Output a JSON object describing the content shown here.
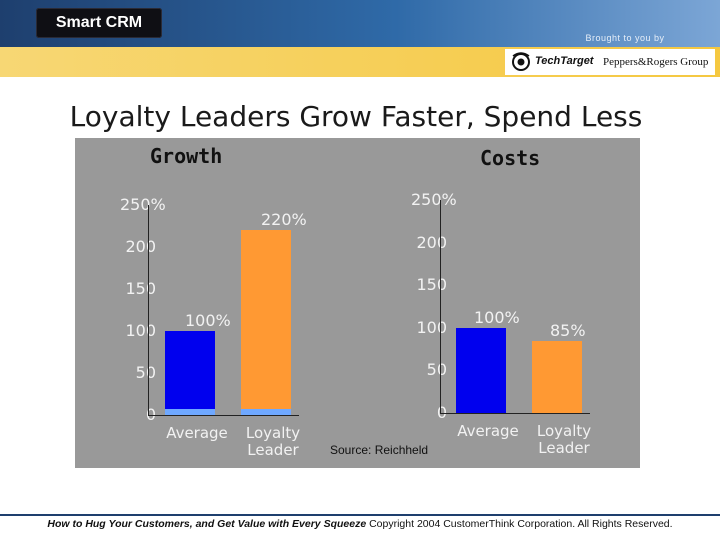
{
  "header": {
    "brand": "Smart CRM",
    "brought_by": "Brought to you by",
    "sponsor1": "TechTarget",
    "sponsor2": "Peppers&Rogers Group"
  },
  "slide": {
    "title": "Loyalty Leaders Grow Faster, Spend Less",
    "source": "Source: Reichheld"
  },
  "footer": {
    "book_title": "How to Hug Your Customers, and Get Value with Every Squeeze",
    "copyright": "Copyright 2004 CustomerThink Corporation. All Rights Reserved."
  },
  "colors": {
    "average_bar": "#0000ee",
    "leader_bar": "#ff9933",
    "panel": "#999999"
  },
  "chart_data": [
    {
      "type": "bar",
      "title": "Growth",
      "categories": [
        "Average",
        "Loyalty Leader"
      ],
      "values": [
        100,
        220
      ],
      "value_labels": [
        "100%",
        "220%"
      ],
      "yticks": [
        "0",
        "50",
        "100",
        "150",
        "200",
        "250%"
      ],
      "ylim": [
        0,
        250
      ]
    },
    {
      "type": "bar",
      "title": "Costs",
      "categories": [
        "Average",
        "Loyalty Leader"
      ],
      "values": [
        100,
        85
      ],
      "value_labels": [
        "100%",
        "85%"
      ],
      "yticks": [
        "0",
        "50",
        "100",
        "150",
        "200",
        "250%"
      ],
      "ylim": [
        0,
        250
      ]
    }
  ]
}
